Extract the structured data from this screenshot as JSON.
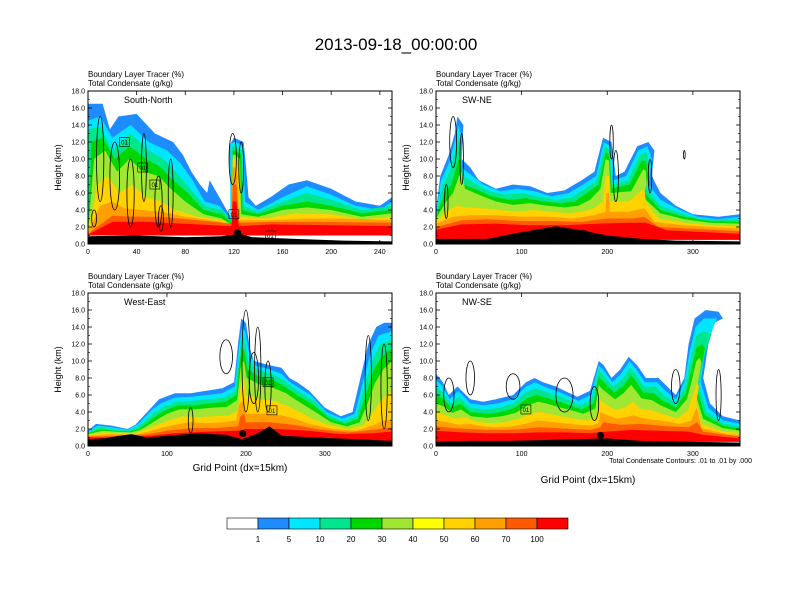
{
  "figure": {
    "title": "2013-09-18_00:00:00",
    "footnote": "Total Condensate Contours: .01 to .01 by .000"
  },
  "chart_data": [
    {
      "type": "heatmap",
      "panel_label": "South-North",
      "left_title": "Boundary Layer Tracer",
      "left_subtitle": "Total Condensate",
      "right_title": "(%)",
      "right_subtitle": "(g/kg)",
      "ylabel": "Height (km)",
      "xlabel": "",
      "xlim": [
        0,
        250
      ],
      "ylim": [
        0,
        18
      ],
      "xticks": [
        "0",
        "40",
        "80",
        "120",
        "160",
        "200",
        "240"
      ],
      "yticks": [
        "0.0",
        "2.0",
        "4.0",
        "6.0",
        "8.0",
        "10.0",
        "12.0",
        "14.0",
        "16.0",
        "18.0"
      ],
      "contour_labels": [
        "01",
        "01",
        "01",
        "01",
        "01"
      ]
    },
    {
      "type": "heatmap",
      "panel_label": "SW-NE",
      "left_title": "Boundary Layer Tracer",
      "left_subtitle": "Total Condensate",
      "right_title": "(%)",
      "right_subtitle": "(g/kg)",
      "ylabel": "Height (km)",
      "xlabel": "",
      "xlim": [
        0,
        355
      ],
      "ylim": [
        0,
        18
      ],
      "xticks": [
        "0",
        "100",
        "200",
        "300"
      ],
      "yticks": [
        "0.0",
        "2.0",
        "4.0",
        "6.0",
        "8.0",
        "10.0",
        "12.0",
        "14.0",
        "16.0",
        "18.0"
      ],
      "contour_labels": []
    },
    {
      "type": "heatmap",
      "panel_label": "West-East",
      "left_title": "Boundary Layer Tracer",
      "left_subtitle": "Total Condensate",
      "right_title": "(%)",
      "right_subtitle": "(g/kg)",
      "ylabel": "Height (km)",
      "xlabel": "Grid Point (dx=15km)",
      "xlim": [
        0,
        385
      ],
      "ylim": [
        0,
        18
      ],
      "xticks": [
        "0",
        "100",
        "200",
        "300"
      ],
      "yticks": [
        "0.0",
        "2.0",
        "4.0",
        "6.0",
        "8.0",
        "10.0",
        "12.0",
        "14.0",
        "16.0",
        "18.0"
      ],
      "contour_labels": [
        "01",
        "01"
      ]
    },
    {
      "type": "heatmap",
      "panel_label": "NW-SE",
      "left_title": "Boundary Layer Tracer",
      "left_subtitle": "Total Condensate",
      "right_title": "(%)",
      "right_subtitle": "(g/kg)",
      "ylabel": "Height (km)",
      "xlabel": "Grid Point (dx=15km)",
      "xlim": [
        0,
        355
      ],
      "ylim": [
        0,
        18
      ],
      "xticks": [
        "0",
        "100",
        "200",
        "300"
      ],
      "yticks": [
        "0.0",
        "2.0",
        "4.0",
        "6.0",
        "8.0",
        "10.0",
        "12.0",
        "14.0",
        "16.0",
        "18.0"
      ],
      "contour_labels": [
        "01"
      ]
    }
  ],
  "colorbar": {
    "colors": [
      "#ffffff",
      "#1e8cff",
      "#00e6ff",
      "#00e68c",
      "#00d700",
      "#a0e632",
      "#ffff00",
      "#ffd200",
      "#ffa000",
      "#ff5a00",
      "#ff0000"
    ],
    "labels": [
      "1",
      "5",
      "10",
      "20",
      "30",
      "40",
      "50",
      "60",
      "70",
      "100"
    ]
  }
}
